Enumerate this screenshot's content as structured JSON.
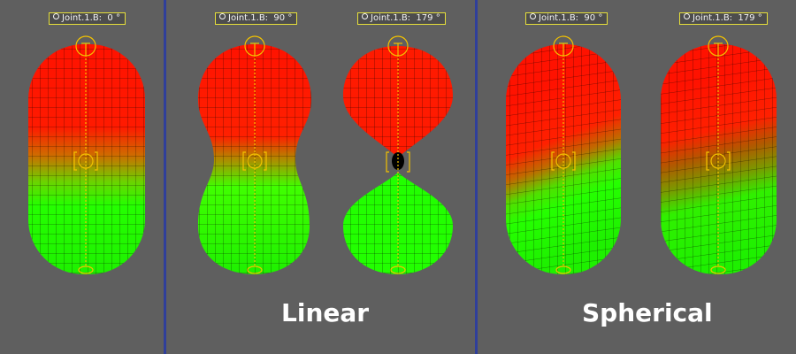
{
  "panels": {
    "rest": {
      "joint_label": "Joint.1.B:",
      "angle": "0 °"
    },
    "linear_90": {
      "joint_label": "Joint.1.B:",
      "angle": "90 °"
    },
    "linear_179": {
      "joint_label": "Joint.1.B:",
      "angle": "179 °"
    },
    "spherical_90": {
      "joint_label": "Joint.1.B:",
      "angle": "90 °"
    },
    "spherical_179": {
      "joint_label": "Joint.1.B:",
      "angle": "179 °"
    }
  },
  "captions": {
    "linear": "Linear",
    "spherical": "Spherical"
  },
  "colors": {
    "background": "#5f5f5f",
    "divider": "#2f3f9a",
    "top_mesh": "#ff1a00",
    "bottom_mesh": "#22ff00",
    "bone": "#f2c200"
  }
}
